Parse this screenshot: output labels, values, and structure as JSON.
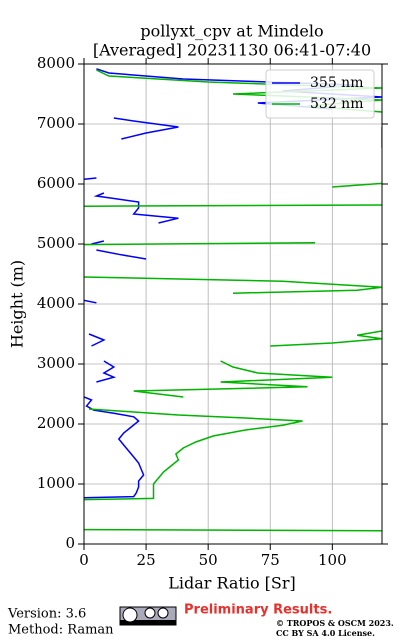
{
  "chart_data": {
    "type": "line",
    "title": "pollyxt_cpv at Mindelo",
    "subtitle": "[Averaged] 20231130 06:41-07:40",
    "xlabel": "Lidar Ratio [Sr]",
    "ylabel": "Height (m)",
    "xlim": [
      0,
      120
    ],
    "ylim": [
      0,
      8000
    ],
    "xticks": [
      0,
      25,
      50,
      75,
      100
    ],
    "yticks": [
      0,
      1000,
      2000,
      3000,
      4000,
      5000,
      6000,
      7000,
      8000
    ],
    "grid": true,
    "legend": "upper right",
    "series": [
      {
        "name": "355 nm",
        "color": "#0000ff",
        "y": [
          770,
          790,
          850,
          950,
          1050,
          1150,
          1250,
          1350,
          1450,
          1550,
          1650,
          1750,
          1850,
          1950,
          2050,
          2120,
          2180,
          2230,
          2300,
          2400,
          2450,
          2550,
          2700,
          2780,
          2850,
          2950,
          3050,
          3200,
          3300,
          3400,
          3500,
          3800,
          4020,
          4060,
          4500,
          4750,
          4820,
          4900,
          4950,
          5000,
          5050,
          5200,
          5350,
          5430,
          5500,
          5600,
          5700,
          5800,
          5850,
          5950,
          6080,
          6100,
          6500,
          6750,
          6850,
          6950,
          7050,
          7100,
          7150,
          7250,
          7350,
          7450,
          7550,
          7650,
          7750,
          7850,
          7920
        ],
        "x": [
          0,
          20,
          21,
          22,
          22,
          24,
          23,
          22,
          20,
          18,
          16,
          14,
          16,
          19,
          22,
          20,
          12,
          4,
          1,
          3,
          0,
          null,
          5,
          12,
          8,
          12,
          8,
          null,
          3,
          8,
          2,
          null,
          5,
          0,
          null,
          25,
          15,
          5,
          null,
          3,
          8,
          null,
          30,
          38,
          20,
          22,
          22,
          5,
          8,
          null,
          0,
          5,
          null,
          15,
          25,
          38,
          20,
          12,
          null,
          100,
          70,
          120,
          80,
          110,
          40,
          10,
          5
        ]
      },
      {
        "name": "532 nm",
        "color": "#00b400",
        "y": [
          220,
          240,
          500,
          740,
          760,
          900,
          1000,
          1100,
          1200,
          1300,
          1400,
          1500,
          1600,
          1700,
          1800,
          1900,
          1980,
          2050,
          2100,
          2150,
          2200,
          2250,
          2350,
          2450,
          2550,
          2620,
          2700,
          2780,
          2850,
          2950,
          3050,
          3150,
          3300,
          3350,
          3420,
          3480,
          3550,
          3800,
          4180,
          4230,
          4280,
          4380,
          4450,
          4600,
          4990,
          5020,
          5100,
          5630,
          5650,
          5800,
          5950,
          6010,
          6300,
          6600,
          6950,
          7050,
          7200,
          7300,
          7400,
          7500,
          7600,
          7700,
          7800,
          7900
        ],
        "x": [
          120,
          0,
          null,
          0,
          28,
          28,
          28,
          30,
          32,
          35,
          38,
          37,
          40,
          45,
          52,
          65,
          80,
          88,
          65,
          38,
          20,
          2,
          null,
          40,
          20,
          90,
          55,
          100,
          70,
          60,
          55,
          null,
          75,
          100,
          120,
          110,
          120,
          null,
          60,
          110,
          120,
          80,
          0,
          null,
          0,
          93,
          null,
          0,
          120,
          null,
          100,
          120,
          null,
          120,
          120,
          null,
          120,
          90,
          120,
          60,
          120,
          50,
          10,
          5
        ]
      }
    ]
  },
  "footer": {
    "version": "Version: 3.6",
    "method": "Method: Raman",
    "status": "Preliminary Results.",
    "copyright": "© TROPOS & OSCM 2023.",
    "license": "CC BY SA 4.0 License."
  }
}
